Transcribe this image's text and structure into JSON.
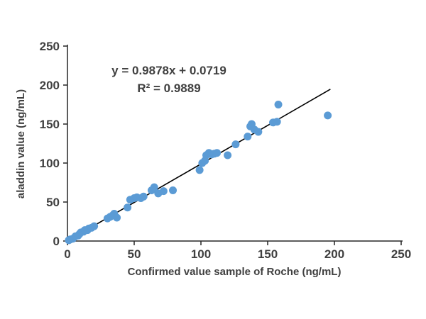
{
  "chart_data": {
    "type": "scatter",
    "title": "",
    "xlabel": "Confirmed value sample of Roche (ng/mL)",
    "ylabel": "aladdin value (ng/mL)",
    "xlim": [
      0,
      250
    ],
    "ylim": [
      0,
      250
    ],
    "xticks": [
      0,
      50,
      100,
      150,
      200,
      250
    ],
    "yticks": [
      0,
      50,
      100,
      150,
      200,
      250
    ],
    "grid": false,
    "legend": "none",
    "annotations": {
      "equation": "y = 0.9878x + 0.0719",
      "r_squared": "R² = 0.9889"
    },
    "colors": {
      "point": "#5B9BD5",
      "trendline": "#000000",
      "axis": "#262626",
      "text": "#404040"
    },
    "trendline": {
      "slope": 0.9878,
      "intercept": 0.0719,
      "x_start": 0,
      "x_end": 197
    },
    "points": [
      [
        1,
        1
      ],
      [
        2,
        2
      ],
      [
        4,
        3
      ],
      [
        6,
        6
      ],
      [
        8,
        7
      ],
      [
        9,
        9
      ],
      [
        10,
        11
      ],
      [
        12,
        12
      ],
      [
        13,
        14
      ],
      [
        15,
        14
      ],
      [
        16,
        16
      ],
      [
        18,
        17
      ],
      [
        20,
        19
      ],
      [
        30,
        29
      ],
      [
        32,
        31
      ],
      [
        34,
        33
      ],
      [
        35,
        35
      ],
      [
        37,
        30
      ],
      [
        45,
        43
      ],
      [
        47,
        53
      ],
      [
        50,
        55
      ],
      [
        52,
        56
      ],
      [
        55,
        55
      ],
      [
        57,
        57
      ],
      [
        63,
        65
      ],
      [
        65,
        69
      ],
      [
        68,
        61
      ],
      [
        72,
        64
      ],
      [
        79,
        65
      ],
      [
        99,
        91
      ],
      [
        101,
        100
      ],
      [
        103,
        103
      ],
      [
        104,
        110
      ],
      [
        106,
        113
      ],
      [
        108,
        111
      ],
      [
        110,
        112
      ],
      [
        112,
        113
      ],
      [
        120,
        110
      ],
      [
        126,
        124
      ],
      [
        135,
        134
      ],
      [
        137,
        147
      ],
      [
        138,
        150
      ],
      [
        140,
        143
      ],
      [
        143,
        140
      ],
      [
        154,
        152
      ],
      [
        157,
        153
      ],
      [
        158,
        175
      ],
      [
        195,
        161
      ]
    ]
  }
}
